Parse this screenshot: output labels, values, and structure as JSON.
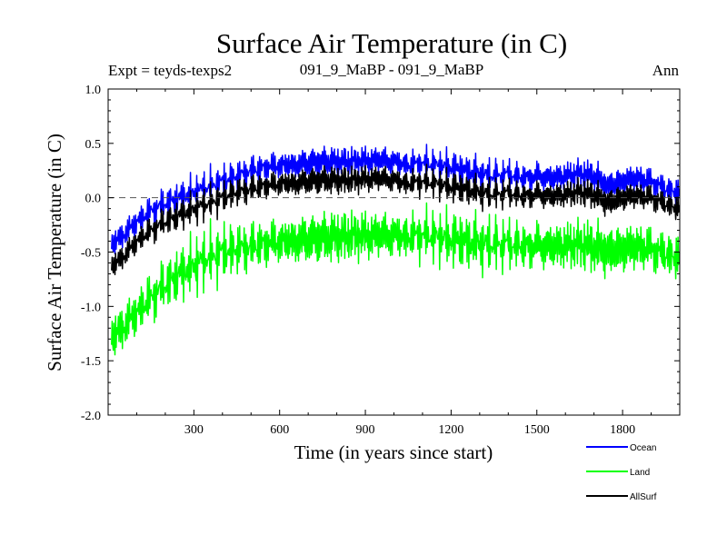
{
  "chart_data": {
    "type": "line",
    "title": "Surface Air Temperature (in C)",
    "subtitle_left": "Expt = teyds-texps2",
    "subtitle_center": "091_9_MaBP - 091_9_MaBP",
    "subtitle_right": "Ann",
    "xlabel": "Time (in years since start)",
    "ylabel": "Surface Air Temperature (in C)",
    "xlim": [
      0,
      2000
    ],
    "ylim": [
      -2.0,
      1.0
    ],
    "x_ticks": [
      300,
      600,
      900,
      1200,
      1500,
      1800
    ],
    "y_ticks": [
      -2.0,
      -1.5,
      -1.0,
      -0.5,
      0.0,
      0.5,
      1.0
    ],
    "zero_line": true,
    "series": [
      {
        "name": "Ocean",
        "color": "#0000ff",
        "x": [
          0,
          50,
          100,
          150,
          200,
          250,
          300,
          350,
          400,
          450,
          500,
          550,
          600,
          650,
          700,
          750,
          800,
          850,
          900,
          950,
          1000,
          1050,
          1100,
          1150,
          1200,
          1250,
          1300,
          1350,
          1400,
          1450,
          1500,
          1550,
          1600,
          1650,
          1700,
          1750,
          1800,
          1850,
          1900,
          1950,
          2000
        ],
        "values": [
          -0.45,
          -0.35,
          -0.22,
          -0.12,
          -0.05,
          0.0,
          0.05,
          0.1,
          0.15,
          0.2,
          0.25,
          0.28,
          0.3,
          0.3,
          0.32,
          0.33,
          0.33,
          0.33,
          0.34,
          0.35,
          0.33,
          0.3,
          0.32,
          0.3,
          0.28,
          0.25,
          0.22,
          0.2,
          0.22,
          0.18,
          0.2,
          0.18,
          0.2,
          0.22,
          0.2,
          0.1,
          0.15,
          0.18,
          0.15,
          0.08,
          0.05
        ]
      },
      {
        "name": "Land",
        "color": "#00ff00",
        "x": [
          0,
          50,
          100,
          150,
          200,
          250,
          300,
          350,
          400,
          450,
          500,
          550,
          600,
          650,
          700,
          750,
          800,
          850,
          900,
          950,
          1000,
          1050,
          1100,
          1150,
          1200,
          1250,
          1300,
          1350,
          1400,
          1450,
          1500,
          1550,
          1600,
          1650,
          1700,
          1750,
          1800,
          1850,
          1900,
          1950,
          2000
        ],
        "values": [
          -1.3,
          -1.2,
          -1.05,
          -0.92,
          -0.8,
          -0.7,
          -0.62,
          -0.55,
          -0.5,
          -0.47,
          -0.45,
          -0.42,
          -0.4,
          -0.4,
          -0.38,
          -0.37,
          -0.36,
          -0.35,
          -0.35,
          -0.34,
          -0.35,
          -0.36,
          -0.34,
          -0.36,
          -0.38,
          -0.4,
          -0.42,
          -0.43,
          -0.42,
          -0.45,
          -0.44,
          -0.45,
          -0.44,
          -0.43,
          -0.45,
          -0.5,
          -0.47,
          -0.45,
          -0.47,
          -0.52,
          -0.55
        ]
      },
      {
        "name": "AllSurf",
        "color": "#000000",
        "x": [
          0,
          50,
          100,
          150,
          200,
          250,
          300,
          350,
          400,
          450,
          500,
          550,
          600,
          650,
          700,
          750,
          800,
          850,
          900,
          950,
          1000,
          1050,
          1100,
          1150,
          1200,
          1250,
          1300,
          1350,
          1400,
          1450,
          1500,
          1550,
          1600,
          1650,
          1700,
          1750,
          1800,
          1850,
          1900,
          1950,
          2000
        ],
        "values": [
          -0.65,
          -0.55,
          -0.4,
          -0.3,
          -0.22,
          -0.16,
          -0.1,
          -0.05,
          0.0,
          0.05,
          0.08,
          0.11,
          0.13,
          0.13,
          0.15,
          0.16,
          0.16,
          0.16,
          0.17,
          0.18,
          0.16,
          0.13,
          0.15,
          0.13,
          0.1,
          0.08,
          0.05,
          0.03,
          0.05,
          0.01,
          0.03,
          0.01,
          0.03,
          0.05,
          0.03,
          -0.05,
          0.0,
          0.02,
          0.0,
          -0.06,
          -0.1
        ]
      }
    ]
  }
}
